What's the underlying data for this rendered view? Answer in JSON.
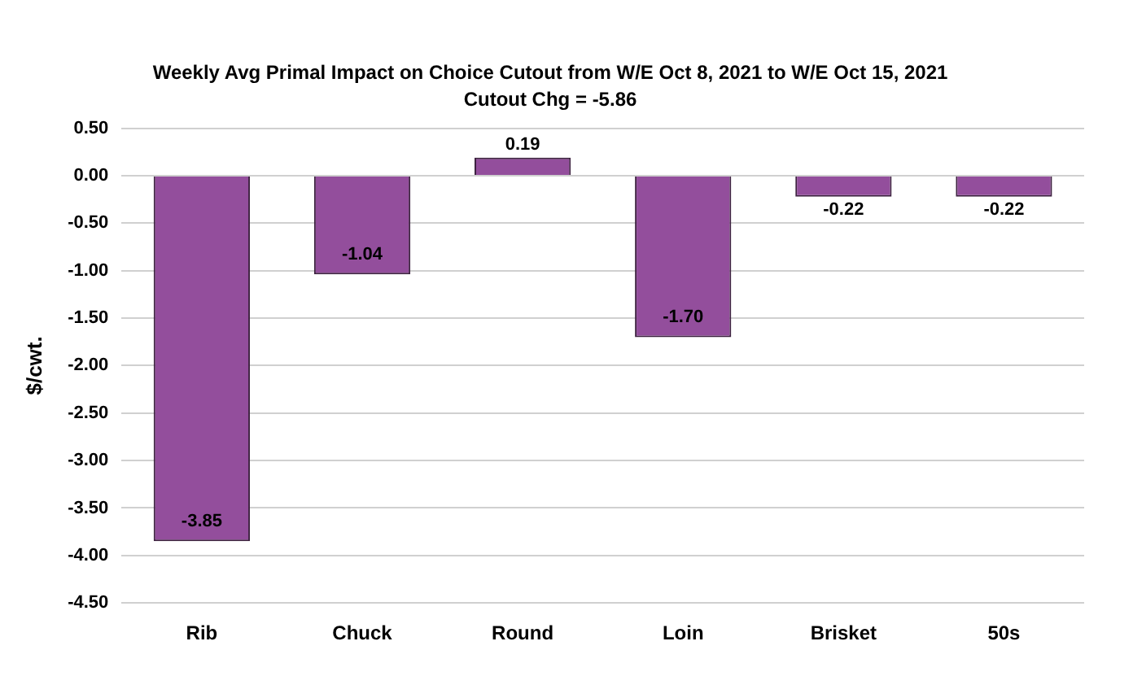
{
  "chart_data": {
    "type": "bar",
    "title": "Weekly Avg Primal Impact on Choice Cutout from W/E Oct 8, 2021 to W/E Oct 15, 2021",
    "subtitle": "Cutout Chg = -5.86",
    "ylabel": "$/cwt.",
    "categories": [
      "Rib",
      "Chuck",
      "Round",
      "Loin",
      "Brisket",
      "50s"
    ],
    "values": [
      -3.85,
      -1.04,
      0.19,
      -1.7,
      -0.22,
      -0.22
    ],
    "value_labels": [
      "-3.85",
      "-1.04",
      "0.19",
      "-1.70",
      "-0.22",
      "-0.22"
    ],
    "color": "#934e9c",
    "ylim": [
      -4.5,
      0.5
    ],
    "yticks": [
      {
        "value": 0.5,
        "label": "0.50"
      },
      {
        "value": 0,
        "label": "0.00"
      },
      {
        "value": -0.5,
        "label": "-0.50"
      },
      {
        "value": -1,
        "label": "-1.00"
      },
      {
        "value": -1.5,
        "label": "-1.50"
      },
      {
        "value": -2,
        "label": "-2.00"
      },
      {
        "value": -2.5,
        "label": "-2.50"
      },
      {
        "value": -3,
        "label": "-3.00"
      },
      {
        "value": -3.5,
        "label": "-3.50"
      },
      {
        "value": -4,
        "label": "-4.00"
      },
      {
        "value": -4.5,
        "label": "-4.50"
      }
    ],
    "grid": "y",
    "legend": false
  }
}
